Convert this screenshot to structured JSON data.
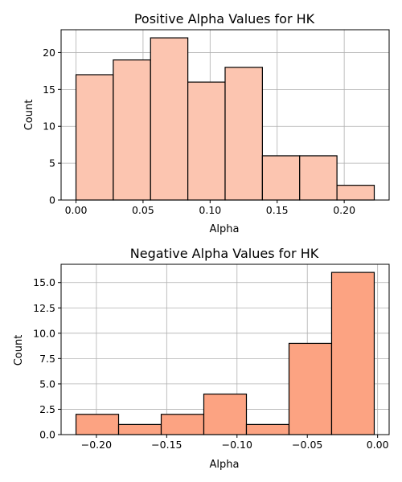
{
  "chart_data": [
    {
      "type": "bar",
      "title": "Positive Alpha Values for HK",
      "xlabel": "Alpha",
      "ylabel": "Count",
      "bin_edges": [
        0.0,
        0.0278,
        0.0556,
        0.0834,
        0.1112,
        0.139,
        0.1668,
        0.1946,
        0.2224
      ],
      "values": [
        17,
        19,
        22,
        16,
        18,
        6,
        6,
        2
      ],
      "xlim": [
        -0.0111,
        0.2335
      ],
      "ylim": [
        0,
        23.1
      ],
      "xticks": [
        0.0,
        0.05,
        0.1,
        0.15,
        0.2
      ],
      "xtick_labels": [
        "0.00",
        "0.05",
        "0.10",
        "0.15",
        "0.20"
      ],
      "yticks": [
        0,
        5,
        10,
        15,
        20
      ],
      "ytick_labels": [
        "0",
        "5",
        "10",
        "15",
        "20"
      ],
      "grid": true,
      "bar_color": "#fcc5b0",
      "edge_color": "#000000"
    },
    {
      "type": "bar",
      "title": "Negative Alpha Values for HK",
      "xlabel": "Alpha",
      "ylabel": "Count",
      "bin_edges": [
        -0.2145,
        -0.1842,
        -0.1539,
        -0.1236,
        -0.0933,
        -0.063,
        -0.0327,
        -0.0024
      ],
      "values": [
        2,
        1,
        2,
        4,
        1,
        9,
        16
      ],
      "xlim": [
        -0.2251,
        0.0082
      ],
      "ylim": [
        0,
        16.8
      ],
      "xticks": [
        -0.2,
        -0.15,
        -0.1,
        -0.05,
        0.0
      ],
      "xtick_labels": [
        "−0.20",
        "−0.15",
        "−0.10",
        "−0.05",
        "0.00"
      ],
      "yticks": [
        0,
        2.5,
        5,
        7.5,
        10,
        12.5,
        15
      ],
      "ytick_labels": [
        "0.0",
        "2.5",
        "5.0",
        "7.5",
        "10.0",
        "12.5",
        "15.0"
      ],
      "grid": true,
      "bar_color": "#fca382",
      "edge_color": "#000000"
    }
  ]
}
